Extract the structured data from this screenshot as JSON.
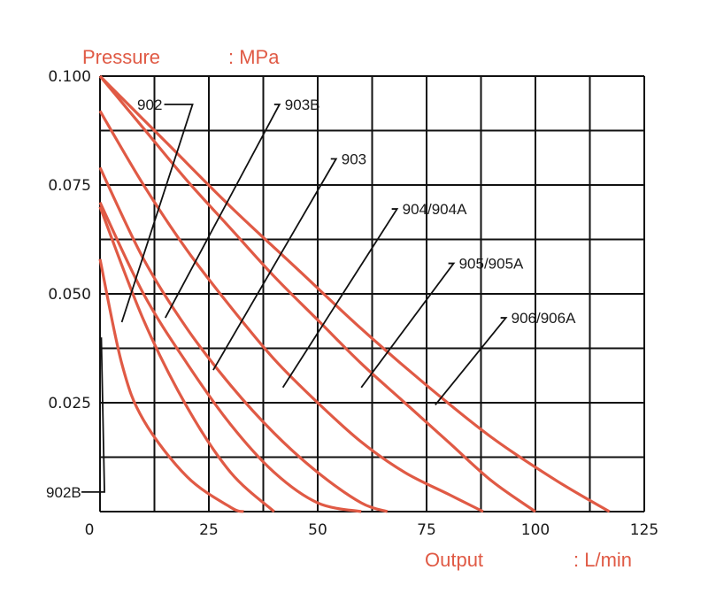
{
  "chart_data": {
    "type": "line",
    "y_axis": {
      "title_left": "Pressure",
      "title_unit": ": MPa",
      "ticks": [
        "0.100",
        "0.075",
        "0.050",
        "0.025"
      ],
      "ylim": [
        0,
        0.1
      ]
    },
    "x_axis": {
      "title_left": "Output",
      "title_unit": ": L/min",
      "ticks": [
        "0",
        "25",
        "50",
        "75",
        "100",
        "125"
      ],
      "xlim": [
        0,
        125
      ]
    },
    "grid": true,
    "series": [
      {
        "name": "902B",
        "points": [
          [
            0,
            0.058
          ],
          [
            5,
            0.034
          ],
          [
            10,
            0.021
          ],
          [
            20,
            0.008
          ],
          [
            30,
            0.001
          ],
          [
            33,
            0
          ]
        ],
        "label_at": [
          12,
          0.0045
        ],
        "lead_to": [
          0.3,
          0.04
        ]
      },
      {
        "name": "902",
        "points": [
          [
            0,
            0.07
          ],
          [
            10,
            0.044
          ],
          [
            20,
            0.024
          ],
          [
            30,
            0.009
          ],
          [
            40,
            0
          ]
        ],
        "label_at": [
          18,
          0.0935
        ],
        "lead_to": [
          5,
          0.0435
        ]
      },
      {
        "name": "903B",
        "points": [
          [
            0,
            0.071
          ],
          [
            10,
            0.05
          ],
          [
            20,
            0.034
          ],
          [
            30,
            0.02
          ],
          [
            40,
            0.009
          ],
          [
            50,
            0.002
          ],
          [
            60,
            0
          ]
        ],
        "label_at": [
          40,
          0.0935
        ],
        "lead_to": [
          15,
          0.0445
        ]
      },
      {
        "name": "903",
        "points": [
          [
            0,
            0.079
          ],
          [
            10,
            0.058
          ],
          [
            20,
            0.042
          ],
          [
            30,
            0.029
          ],
          [
            40,
            0.018
          ],
          [
            50,
            0.009
          ],
          [
            60,
            0.002
          ],
          [
            66,
            0
          ]
        ],
        "label_at": [
          53,
          0.081
        ],
        "lead_to": [
          26,
          0.0325
        ]
      },
      {
        "name": "904/904A",
        "points": [
          [
            0,
            0.092
          ],
          [
            10,
            0.075
          ],
          [
            20,
            0.06
          ],
          [
            30,
            0.047
          ],
          [
            40,
            0.035
          ],
          [
            50,
            0.025
          ],
          [
            60,
            0.016
          ],
          [
            70,
            0.009
          ],
          [
            80,
            0.004
          ],
          [
            88,
            0
          ]
        ],
        "label_at": [
          67,
          0.0695
        ],
        "lead_to": [
          42,
          0.0285
        ]
      },
      {
        "name": "905/905A",
        "points": [
          [
            0,
            0.1
          ],
          [
            10,
            0.088
          ],
          [
            20,
            0.076
          ],
          [
            30,
            0.065
          ],
          [
            40,
            0.054
          ],
          [
            50,
            0.044
          ],
          [
            60,
            0.034
          ],
          [
            70,
            0.025
          ],
          [
            80,
            0.016
          ],
          [
            90,
            0.007
          ],
          [
            100,
            0
          ]
        ],
        "label_at": [
          80,
          0.057
        ],
        "lead_to": [
          60,
          0.0285
        ]
      },
      {
        "name": "906/906A",
        "points": [
          [
            0,
            0.1
          ],
          [
            15,
            0.085
          ],
          [
            30,
            0.07
          ],
          [
            45,
            0.056
          ],
          [
            60,
            0.042
          ],
          [
            75,
            0.029
          ],
          [
            90,
            0.017
          ],
          [
            105,
            0.007
          ],
          [
            117,
            0
          ]
        ],
        "label_at": [
          92,
          0.0445
        ],
        "lead_to": [
          77,
          0.0245
        ]
      }
    ]
  }
}
